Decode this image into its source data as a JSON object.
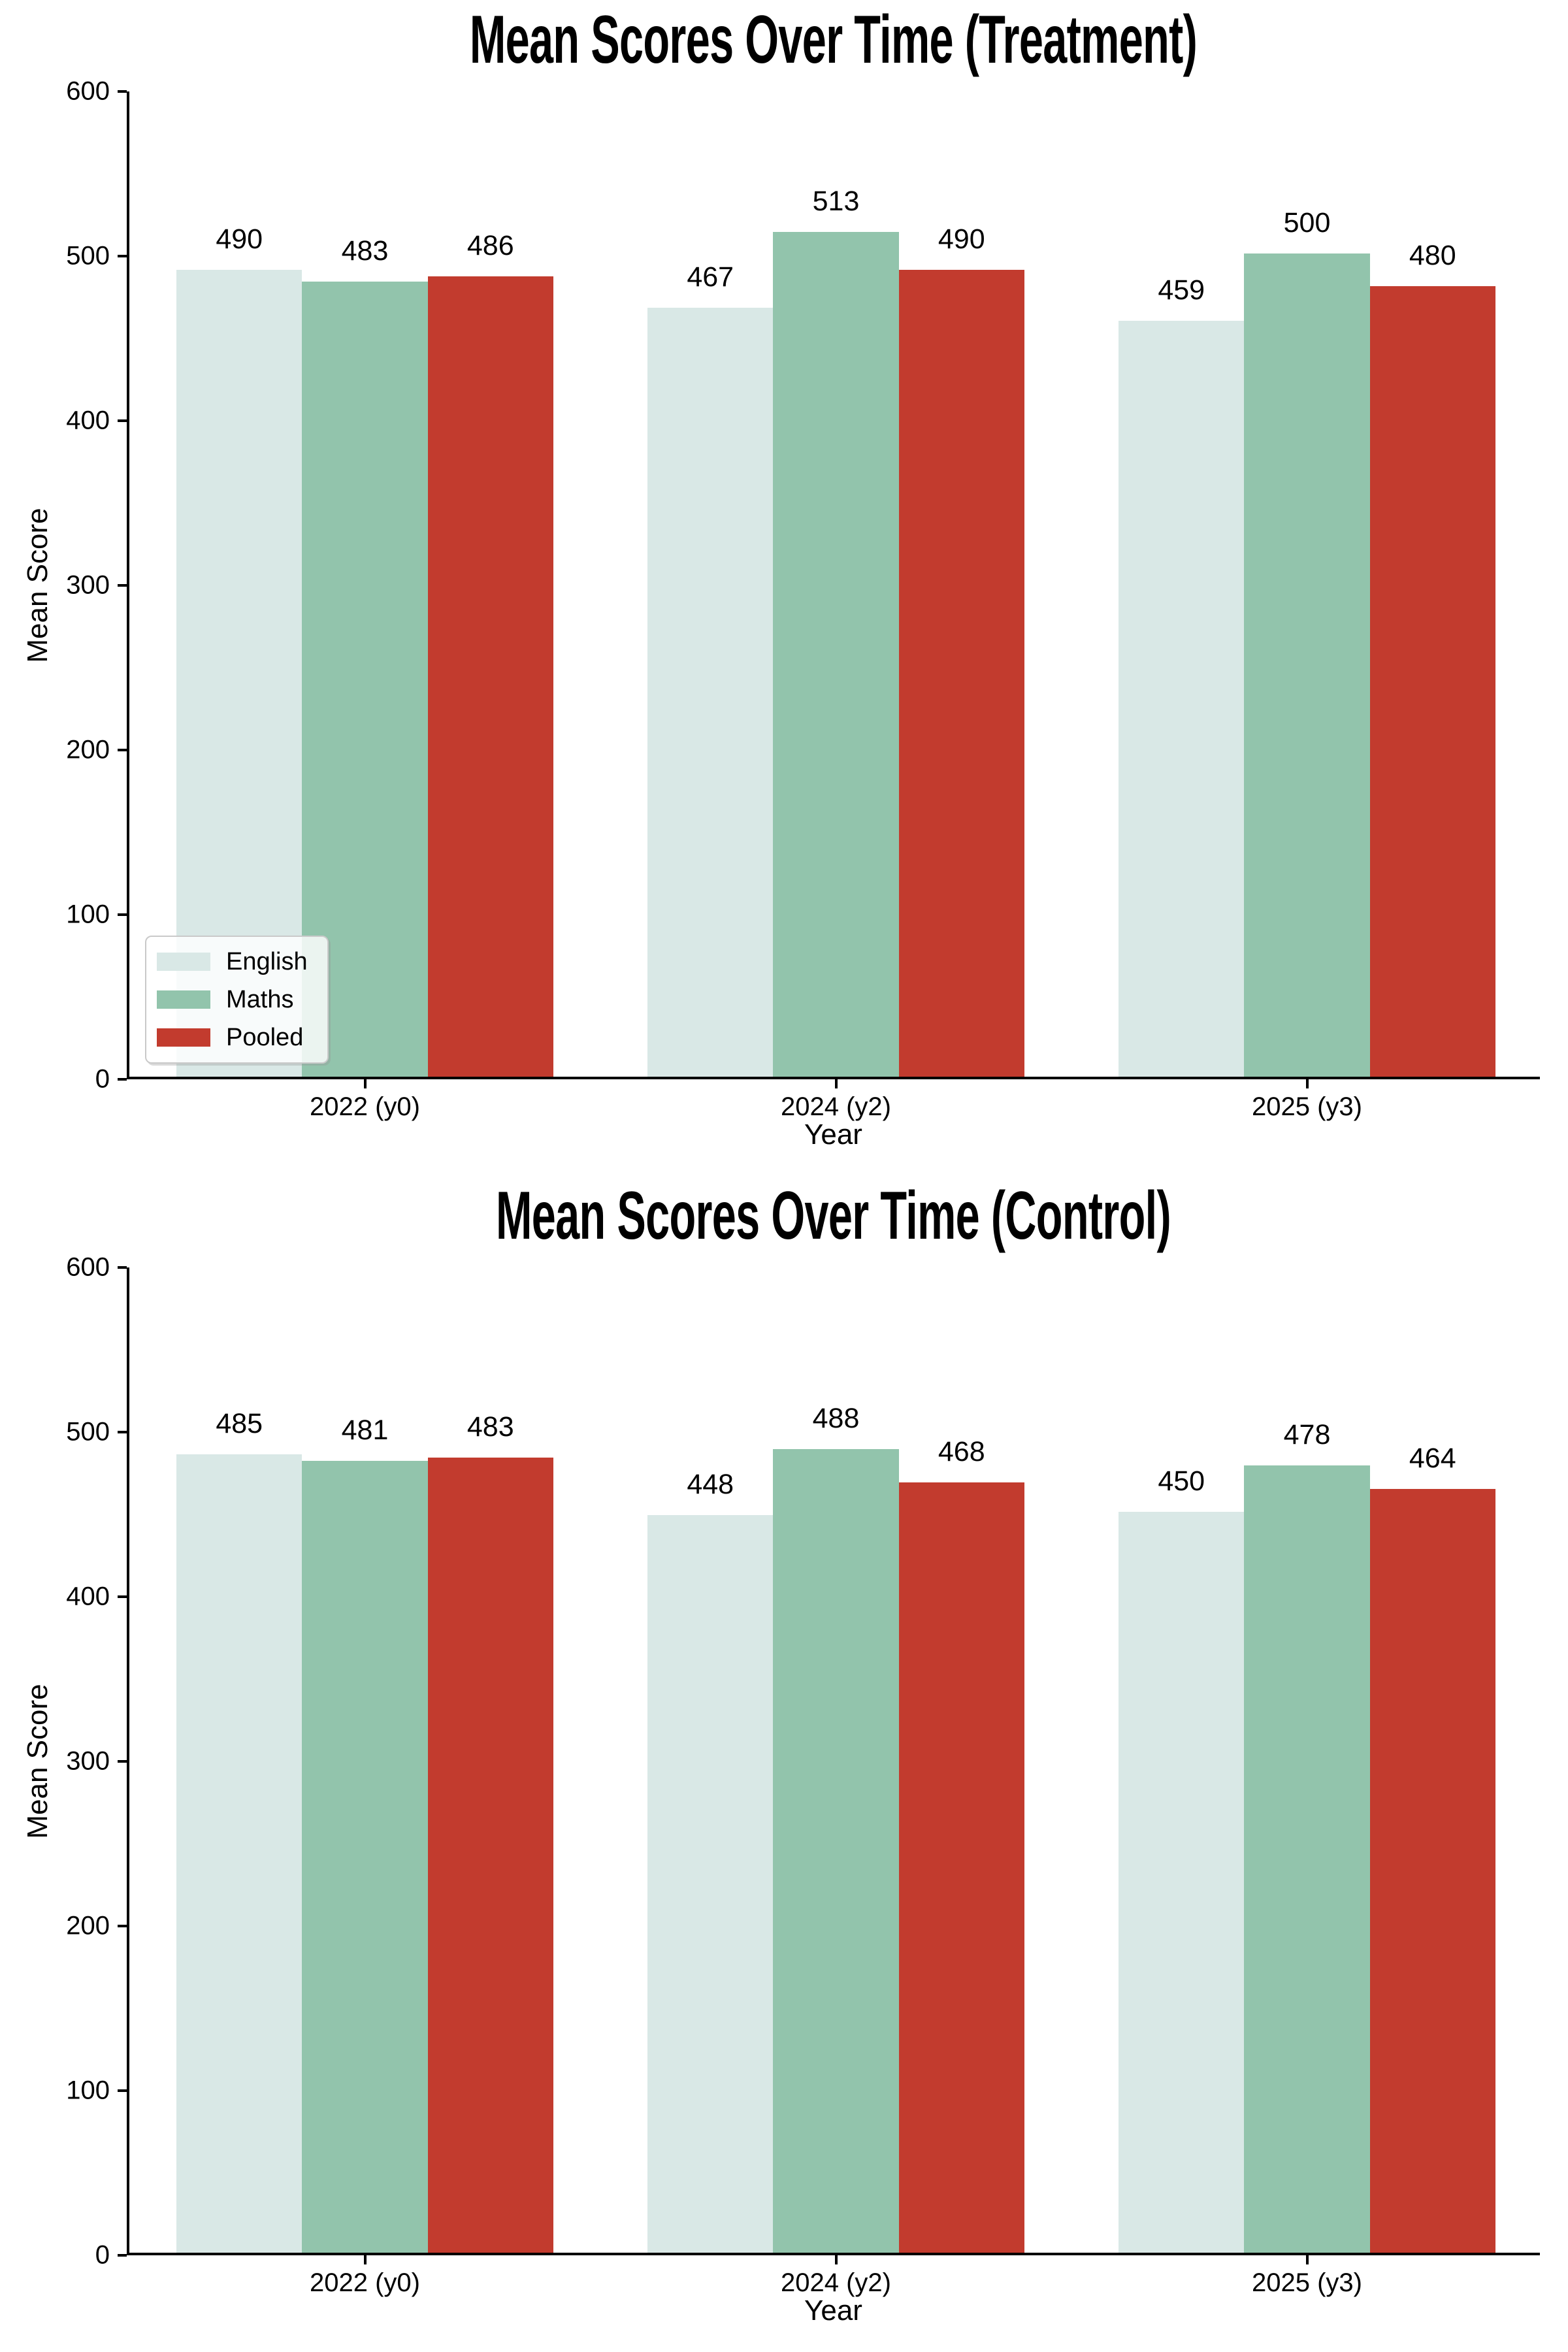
{
  "figure": {
    "background": "#ffffff"
  },
  "chart_data": [
    {
      "type": "bar",
      "title": "Mean Scores Over Time (Treatment)",
      "xlabel": "Year",
      "ylabel": "Mean Score",
      "categories": [
        "2022 (y0)",
        "2024 (y2)",
        "2025 (y3)"
      ],
      "series": [
        {
          "name": "English",
          "color": "#d9e8e6",
          "values": [
            490,
            467,
            459
          ]
        },
        {
          "name": "Maths",
          "color": "#92c4ac",
          "values": [
            483,
            513,
            500
          ]
        },
        {
          "name": "Pooled",
          "color": "#c23b2e",
          "values": [
            486,
            490,
            480
          ]
        }
      ],
      "bar_value_labels": true,
      "ylim": [
        0,
        600
      ],
      "yticks": [
        0,
        100,
        200,
        300,
        400,
        500,
        600
      ],
      "grid": false,
      "legend": {
        "show": true,
        "location": "lower left",
        "labels": [
          "English",
          "Maths",
          "Pooled"
        ]
      }
    },
    {
      "type": "bar",
      "title": "Mean Scores Over Time (Control)",
      "xlabel": "Year",
      "ylabel": "Mean Score",
      "categories": [
        "2022 (y0)",
        "2024 (y2)",
        "2025 (y3)"
      ],
      "series": [
        {
          "name": "English",
          "color": "#d9e8e6",
          "values": [
            485,
            448,
            450
          ]
        },
        {
          "name": "Maths",
          "color": "#92c4ac",
          "values": [
            481,
            488,
            478
          ]
        },
        {
          "name": "Pooled",
          "color": "#c23b2e",
          "values": [
            483,
            468,
            464
          ]
        }
      ],
      "bar_value_labels": true,
      "ylim": [
        0,
        600
      ],
      "yticks": [
        0,
        100,
        200,
        300,
        400,
        500,
        600
      ],
      "grid": false,
      "legend": {
        "show": false
      }
    }
  ]
}
